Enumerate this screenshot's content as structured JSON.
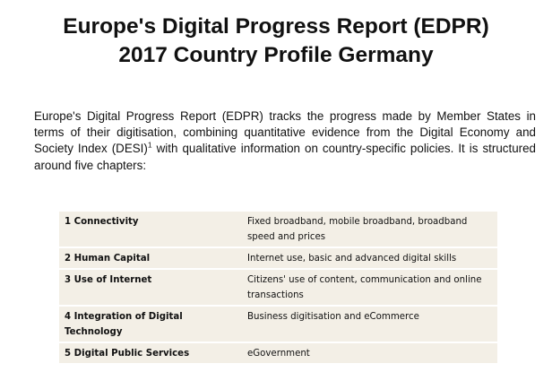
{
  "header": {
    "title_line1": "Europe's Digital Progress Report (EDPR)",
    "title_line2": "2017 Country Profile Germany"
  },
  "intro": {
    "text_before_sup": "Europe's Digital Progress Report (EDPR) tracks the progress made by Member States in terms of their digitisation, combining quantitative evidence from the Digital Economy and Society Index (DESI)",
    "footnote_marker": "1",
    "text_after_sup": " with qualitative information on country-specific policies. It is structured around five chapters:"
  },
  "chapters_table": {
    "rows": [
      {
        "chapter": "1 Connectivity",
        "description": "Fixed broadband, mobile broadband, broadband speed and prices"
      },
      {
        "chapter": "2 Human Capital",
        "description": "Internet use, basic and advanced digital skills"
      },
      {
        "chapter": "3 Use of Internet",
        "description": "Citizens' use of content, communication and online transactions"
      },
      {
        "chapter": "4 Integration of Digital Technology",
        "description": "Business digitisation and eCommerce"
      },
      {
        "chapter": "5 Digital Public Services",
        "description": "eGovernment"
      }
    ]
  }
}
